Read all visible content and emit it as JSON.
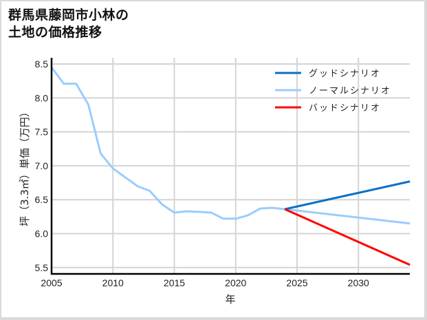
{
  "title_lines": [
    "群馬県藤岡市小林の",
    "土地の価格推移"
  ],
  "chart_data": {
    "type": "line",
    "title": "群馬県藤岡市小林の土地の価格推移",
    "xlabel": "年",
    "ylabel": "坪（3.3㎡）単価（万円）",
    "xlim": [
      2005,
      2034.2
    ],
    "ylim": [
      5.45,
      8.55
    ],
    "xticks": [
      2005,
      2010,
      2015,
      2020,
      2025,
      2030
    ],
    "yticks": [
      5.5,
      6.0,
      6.5,
      7.0,
      7.5,
      8.0,
      8.5
    ],
    "grid": true,
    "legend_position": "upper right",
    "series": [
      {
        "name": "グッドシナリオ",
        "color": "#0a6fc7",
        "x": [
          2024,
          2034.2
        ],
        "values": [
          6.36,
          6.77
        ]
      },
      {
        "name": "ノーマルシナリオ",
        "color": "#99ccff",
        "x": [
          2005,
          2006,
          2007,
          2008,
          2009,
          2010,
          2011,
          2012,
          2013,
          2014,
          2015,
          2016,
          2017,
          2018,
          2019,
          2020,
          2021,
          2022,
          2023,
          2024,
          2034.2
        ],
        "values": [
          8.45,
          8.21,
          8.21,
          7.9,
          7.18,
          6.96,
          6.83,
          6.7,
          6.63,
          6.43,
          6.31,
          6.33,
          6.32,
          6.31,
          6.22,
          6.22,
          6.27,
          6.37,
          6.38,
          6.36,
          6.15
        ]
      },
      {
        "name": "バッドシナリオ",
        "color": "#ff0000",
        "x": [
          2024,
          2034.2
        ],
        "values": [
          6.36,
          5.54
        ]
      }
    ]
  }
}
